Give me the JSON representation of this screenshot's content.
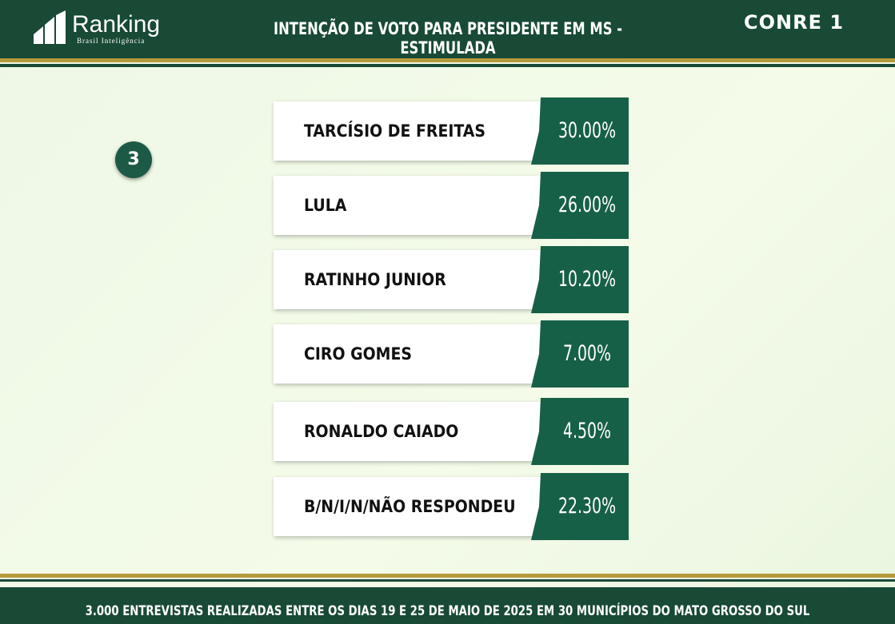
{
  "header": {
    "logo": "Ranking",
    "logo_subtitle": "Brasil Inteligência",
    "title": "INTENÇÃO DE VOTO PARA PRESIDENTE EM MS - ESTIMULADA",
    "partner_logo": "CONRE 1"
  },
  "badge": "3",
  "rows": [
    {
      "name": "TARCÍSIO DE FREITAS",
      "value": "30.00%"
    },
    {
      "name": "LULA",
      "value": "26.00%"
    },
    {
      "name": "RATINHO JUNIOR",
      "value": "10.20%"
    },
    {
      "name": "CIRO GOMES",
      "value": "7.00%"
    },
    {
      "name": "RONALDO CAIADO",
      "value": "4.50%"
    },
    {
      "name": "B/N/I/N/NÃO RESPONDEU",
      "value": "22.30%"
    }
  ],
  "footer": "3.000 ENTREVISTAS REALIZADAS ENTRE OS DIAS 19 E 25 DE MAIO DE 2025 EM 30 MUNICÍPIOS DO MATO GROSSO DO SUL"
}
